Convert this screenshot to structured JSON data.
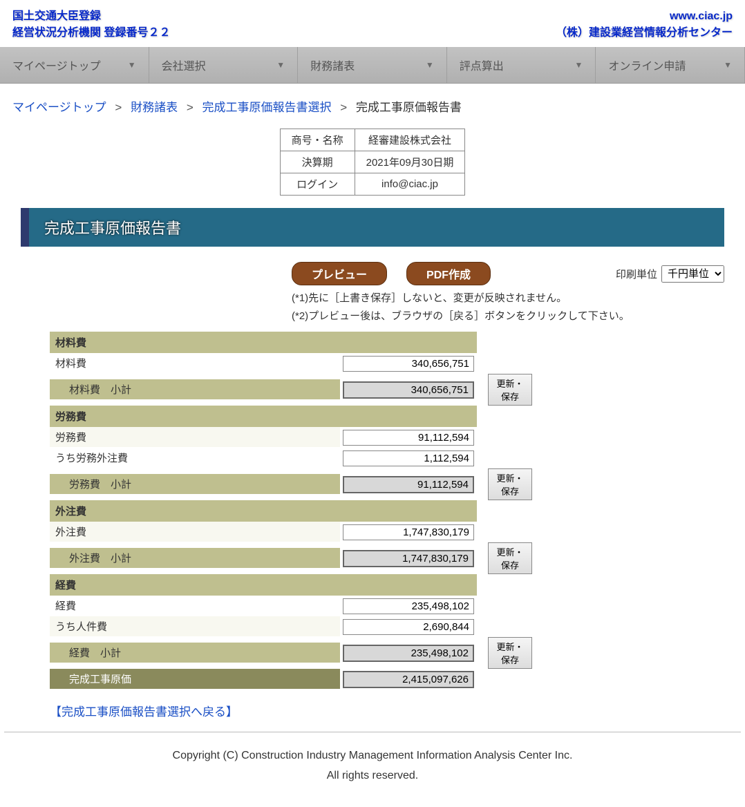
{
  "header": {
    "left_line1": "国土交通大臣登録",
    "left_line2": "経営状況分析機関 登録番号２２",
    "right_line1": "www.ciac.jp",
    "right_line2": "（株）建設業経営情報分析センター"
  },
  "nav": {
    "items": [
      "マイページトップ",
      "会社選択",
      "財務諸表",
      "評点算出",
      "オンライン申請"
    ]
  },
  "breadcrumb": {
    "items": [
      "マイページトップ",
      "財務諸表",
      "完成工事原価報告書選択"
    ],
    "current": "完成工事原価報告書",
    "sep": ">"
  },
  "infobox": {
    "rows": [
      [
        "商号・名称",
        "経審建設株式会社"
      ],
      [
        "決算期",
        "2021年09月30日期"
      ],
      [
        "ログイン",
        "info@ciac.jp"
      ]
    ]
  },
  "titlebar": "完成工事原価報告書",
  "actions": {
    "preview": "プレビュー",
    "pdf": "PDF作成",
    "print_label": "印刷単位",
    "print_option": "千円単位"
  },
  "notes": {
    "n1": "(*1)先に［上書き保存］しないと、変更が反映されません。",
    "n2": "(*2)プレビュー後は、ブラウザの［戻る］ボタンをクリックして下さい。"
  },
  "save_btn": "更新・保存",
  "sections": [
    {
      "header": "材料費",
      "rows": [
        {
          "label": "材料費",
          "value": "340,656,751"
        }
      ],
      "subtotal": {
        "label": "材料費　小計",
        "value": "340,656,751"
      }
    },
    {
      "header": "労務費",
      "rows": [
        {
          "label": "労務費",
          "value": "91,112,594"
        },
        {
          "label": "うち労務外注費",
          "value": "1,112,594"
        }
      ],
      "subtotal": {
        "label": "労務費　小計",
        "value": "91,112,594"
      }
    },
    {
      "header": "外注費",
      "rows": [
        {
          "label": "外注費",
          "value": "1,747,830,179"
        }
      ],
      "subtotal": {
        "label": "外注費　小計",
        "value": "1,747,830,179"
      }
    },
    {
      "header": "経費",
      "rows": [
        {
          "label": "経費",
          "value": "235,498,102"
        },
        {
          "label": "うち人件費",
          "value": "2,690,844"
        }
      ],
      "subtotal": {
        "label": "経費　小計",
        "value": "235,498,102"
      }
    }
  ],
  "total": {
    "label": "完成工事原価",
    "value": "2,415,097,626"
  },
  "back_link": "【完成工事原価報告書選択へ戻る】",
  "footer": {
    "line1": "Copyright (C) Construction Industry Management Information Analysis Center Inc.",
    "line2": "All rights reserved."
  }
}
